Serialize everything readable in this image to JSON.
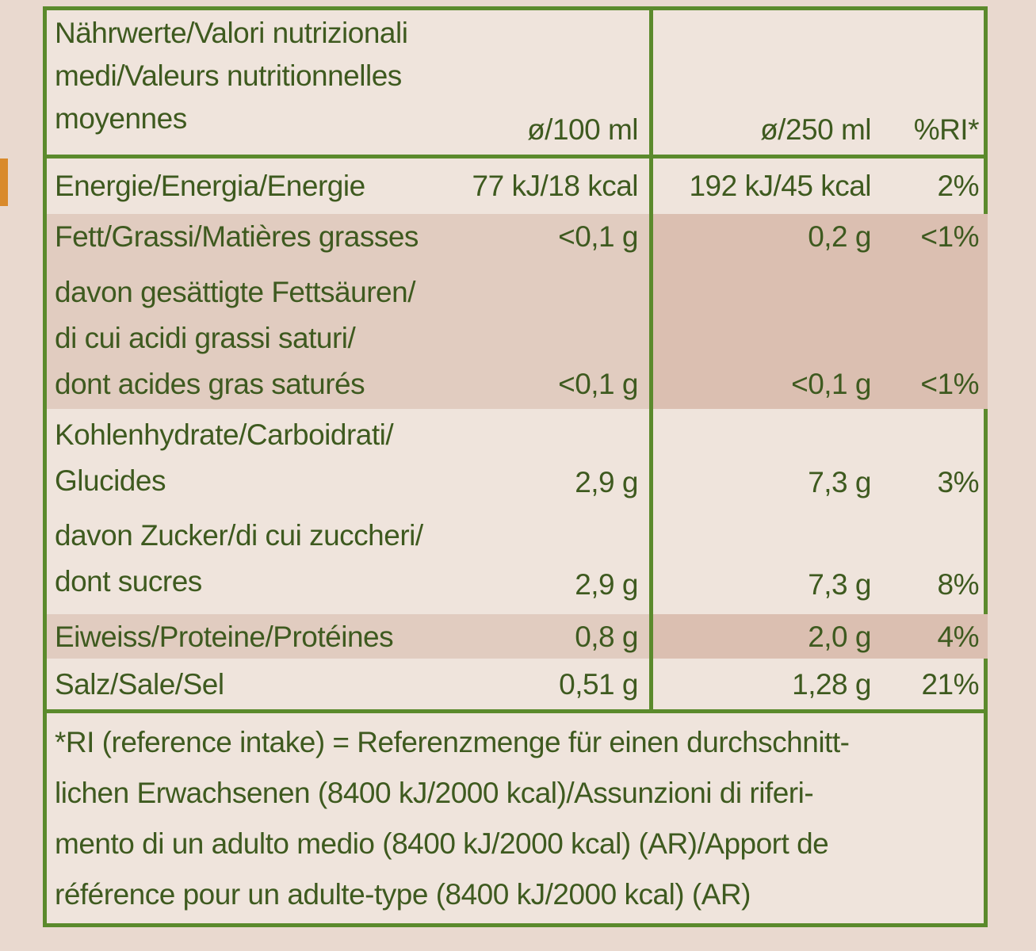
{
  "table": {
    "header": {
      "label": "Nährwerte/Valori nutrizionali\nmedi/Valeurs nutritionnelles\nmoyennes",
      "col_100": "ø/100 ml",
      "col_250": "ø/250 ml",
      "col_ri": "%RI*"
    },
    "rows": [
      {
        "label": "Energie/Energia/Energie",
        "v100": "77 kJ/18 kcal",
        "v250": "192 kJ/45 kcal",
        "ri": "2%"
      },
      {
        "label": "Fett/Grassi/Matières grasses",
        "v100": "<0,1 g",
        "v250": "0,2 g",
        "ri": "<1%"
      },
      {
        "label": "davon gesättigte Fettsäuren/\ndi cui acidi grassi saturi/\ndont acides gras saturés",
        "v100": "<0,1 g",
        "v250": "<0,1 g",
        "ri": "<1%"
      },
      {
        "label": "Kohlenhydrate/Carboidrati/\nGlucides",
        "v100": "2,9 g",
        "v250": "7,3 g",
        "ri": "3%"
      },
      {
        "label": "davon Zucker/di cui zuccheri/\ndont sucres",
        "v100": "2,9 g",
        "v250": "7,3 g",
        "ri": "8%"
      },
      {
        "label": "Eiweiss/Proteine/Protéines",
        "v100": "0,8 g",
        "v250": "2,0 g",
        "ri": "4%"
      },
      {
        "label": "Salz/Sale/Sel",
        "v100": "0,51 g",
        "v250": "1,28 g",
        "ri": "21%"
      }
    ],
    "footnote": "*RI (reference intake) = Referenzmenge für einen durchschnitt-\nlichen Erwachsenen (8400 kJ/2000 kcal)/Assunzioni di riferi-\nmento di un adulto medio (8400 kJ/2000 kcal) (AR)/Apport de\nréférence pour un adulte-type (8400 kJ/2000 kcal) (AR)"
  },
  "colors": {
    "border": "#5b8a2c",
    "text": "#3e5a1f",
    "shade": "#dbbfb1",
    "background": "#efe4dc"
  }
}
